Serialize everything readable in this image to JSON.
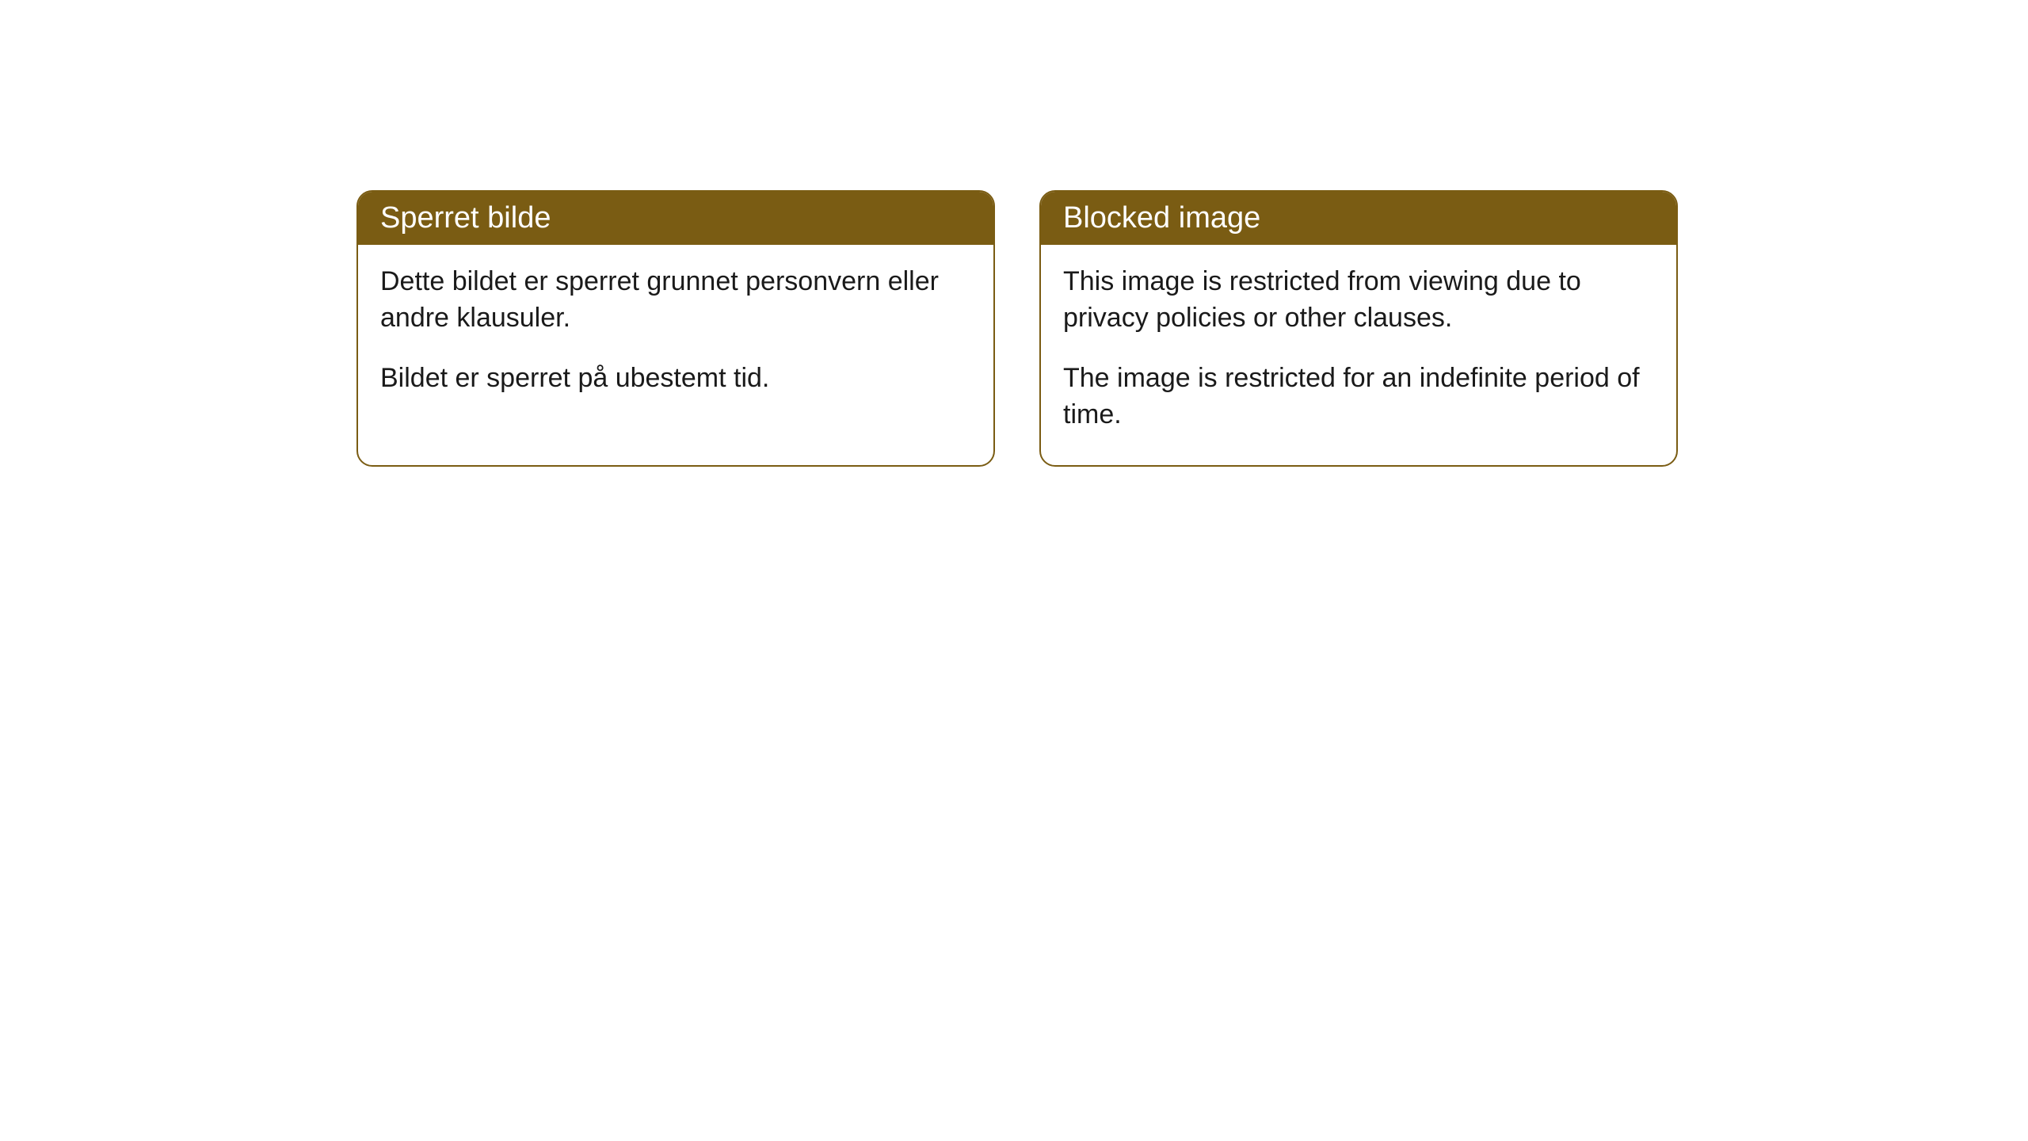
{
  "cards": [
    {
      "title": "Sperret bilde",
      "paragraph1": "Dette bildet er sperret grunnet personvern eller andre klausuler.",
      "paragraph2": "Bildet er sperret på ubestemt tid."
    },
    {
      "title": "Blocked image",
      "paragraph1": "This image is restricted from viewing due to privacy policies or other clauses.",
      "paragraph2": "The image is restricted for an indefinite period of time."
    }
  ],
  "styling": {
    "header_background": "#7a5c13",
    "header_text_color": "#ffffff",
    "border_color": "#7a5c13",
    "body_text_color": "#1a1a1a",
    "card_background": "#ffffff",
    "page_background": "#ffffff",
    "border_radius": 20,
    "header_fontsize": 38,
    "body_fontsize": 34
  }
}
